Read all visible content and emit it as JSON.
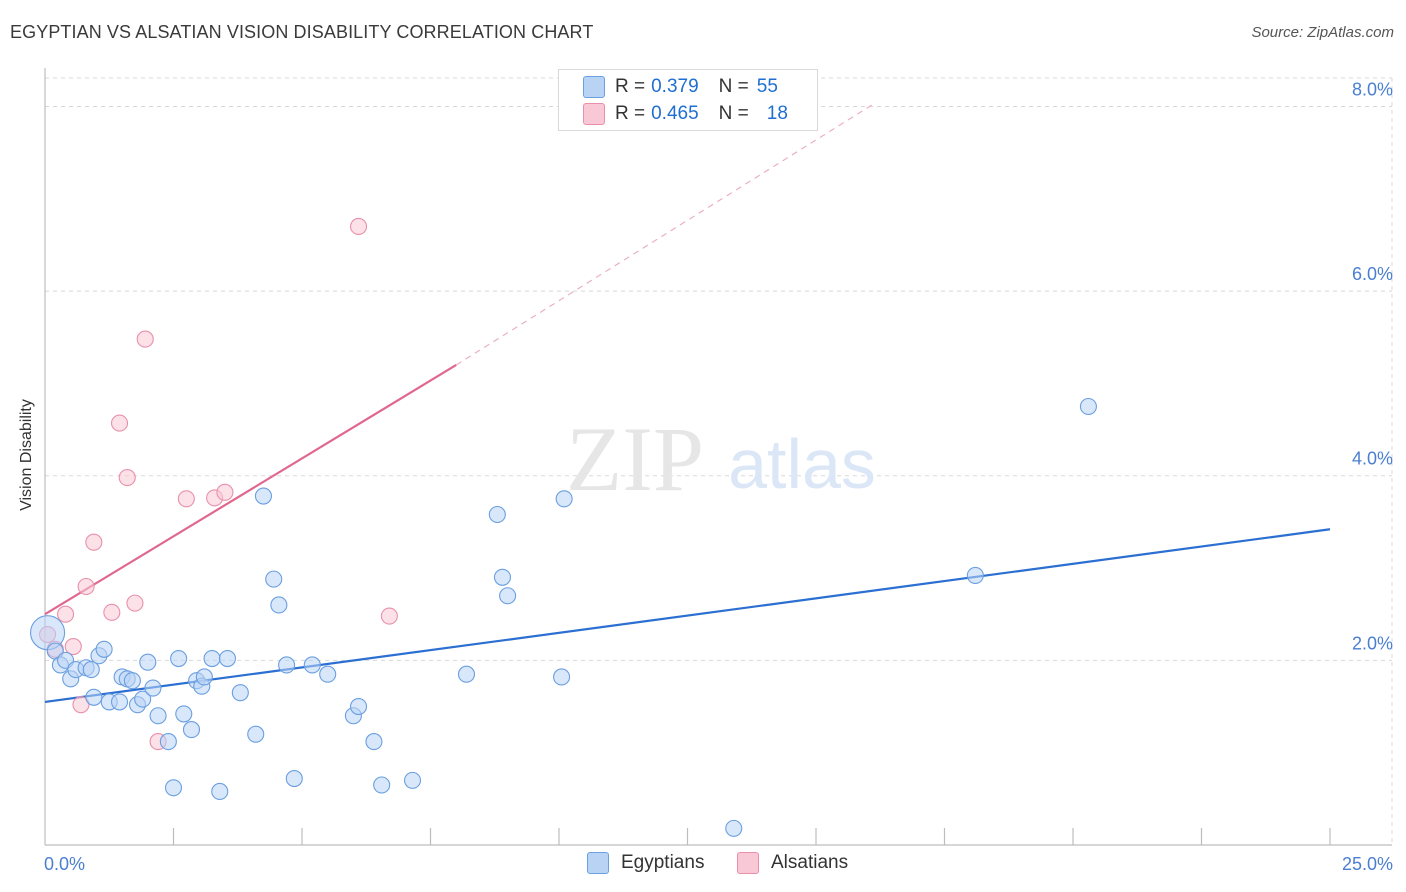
{
  "header": {
    "title": "EGYPTIAN VS ALSATIAN VISION DISABILITY CORRELATION CHART",
    "source": "Source: ZipAtlas.com"
  },
  "legend": {
    "series": [
      {
        "r_label": "R =",
        "r_value": "0.379",
        "n_label": "N =",
        "n_value": "55",
        "fill": "#b9d3f5",
        "stroke": "#6a9fe0"
      },
      {
        "r_label": "R =",
        "r_value": "0.465",
        "n_label": "N =",
        "n_value": "18",
        "fill": "#f9c8d6",
        "stroke": "#e890aa"
      }
    ]
  },
  "bottom_legend": [
    {
      "label": "Egyptians",
      "fill": "#b9d3f5",
      "stroke": "#6a9fe0"
    },
    {
      "label": "Alsatians",
      "fill": "#f9c8d6",
      "stroke": "#e890aa"
    }
  ],
  "watermark": {
    "part1": "ZIP",
    "part2": "atlas"
  },
  "colors": {
    "blue_fill": "#b9d3f5",
    "blue_stroke": "#6a9fe0",
    "blue_line": "#2a6fd1",
    "pink_fill": "#f9c8d6",
    "pink_stroke": "#e890aa",
    "pink_line": "#e06890",
    "tick_text": "#4a7fd0",
    "grid": "#d8d8d8"
  },
  "chart_data": {
    "type": "scatter",
    "title": "EGYPTIAN VS ALSATIAN VISION DISABILITY CORRELATION CHART",
    "xlabel": "",
    "ylabel": "Vision Disability",
    "xlim": [
      0,
      25
    ],
    "ylim": [
      0,
      8.2
    ],
    "x_tick_labels": [
      {
        "value": 0,
        "label": "0.0%"
      },
      {
        "value": 25,
        "label": "25.0%"
      }
    ],
    "x_minor_ticks": [
      2.5,
      5,
      7.5,
      10,
      12.5,
      15,
      17.5,
      20,
      22.5,
      25
    ],
    "y_ticks": [
      {
        "value": 2,
        "label": "2.0%"
      },
      {
        "value": 4,
        "label": "4.0%"
      },
      {
        "value": 6,
        "label": "6.0%"
      },
      {
        "value": 8,
        "label": "8.0%"
      }
    ],
    "grid": true,
    "series": [
      {
        "name": "Egyptians",
        "points": [
          [
            0.05,
            2.3
          ],
          [
            0.2,
            2.1
          ],
          [
            0.3,
            1.95
          ],
          [
            0.4,
            2.0
          ],
          [
            0.5,
            1.8
          ],
          [
            0.6,
            1.9
          ],
          [
            0.8,
            1.92
          ],
          [
            0.9,
            1.9
          ],
          [
            0.95,
            1.6
          ],
          [
            1.05,
            2.05
          ],
          [
            1.15,
            2.12
          ],
          [
            1.25,
            1.55
          ],
          [
            1.45,
            1.55
          ],
          [
            1.5,
            1.82
          ],
          [
            1.6,
            1.8
          ],
          [
            1.7,
            1.78
          ],
          [
            1.8,
            1.52
          ],
          [
            1.9,
            1.58
          ],
          [
            2.0,
            1.98
          ],
          [
            2.1,
            1.7
          ],
          [
            2.2,
            1.4
          ],
          [
            2.4,
            1.12
          ],
          [
            2.5,
            0.62
          ],
          [
            2.6,
            2.02
          ],
          [
            2.7,
            1.42
          ],
          [
            2.85,
            1.25
          ],
          [
            2.95,
            1.78
          ],
          [
            3.05,
            1.72
          ],
          [
            3.1,
            1.82
          ],
          [
            3.25,
            2.02
          ],
          [
            3.4,
            0.58
          ],
          [
            3.55,
            2.02
          ],
          [
            3.8,
            1.65
          ],
          [
            4.1,
            1.2
          ],
          [
            4.25,
            3.78
          ],
          [
            4.45,
            2.88
          ],
          [
            4.55,
            2.6
          ],
          [
            4.7,
            1.95
          ],
          [
            4.85,
            0.72
          ],
          [
            5.2,
            1.95
          ],
          [
            5.5,
            1.85
          ],
          [
            6.0,
            1.4
          ],
          [
            6.1,
            1.5
          ],
          [
            6.4,
            1.12
          ],
          [
            6.55,
            0.65
          ],
          [
            7.15,
            0.7
          ],
          [
            8.2,
            1.85
          ],
          [
            8.8,
            3.58
          ],
          [
            8.9,
            2.9
          ],
          [
            9.0,
            2.7
          ],
          [
            10.1,
            3.75
          ],
          [
            10.05,
            1.82
          ],
          [
            13.4,
            0.18
          ],
          [
            18.1,
            2.92
          ],
          [
            20.3,
            4.75
          ]
        ],
        "trend": {
          "x0": 0,
          "y0": 1.55,
          "x1": 25,
          "y1": 3.42
        }
      },
      {
        "name": "Alsatians",
        "points": [
          [
            0.05,
            2.28
          ],
          [
            0.2,
            2.12
          ],
          [
            0.4,
            2.5
          ],
          [
            0.55,
            2.15
          ],
          [
            0.7,
            1.52
          ],
          [
            0.8,
            2.8
          ],
          [
            0.95,
            3.28
          ],
          [
            1.3,
            2.52
          ],
          [
            1.45,
            4.57
          ],
          [
            1.6,
            3.98
          ],
          [
            1.75,
            2.62
          ],
          [
            1.95,
            5.48
          ],
          [
            2.2,
            1.12
          ],
          [
            2.75,
            3.75
          ],
          [
            3.3,
            3.76
          ],
          [
            3.5,
            3.82
          ],
          [
            6.1,
            6.7
          ],
          [
            6.7,
            2.48
          ]
        ],
        "trend": {
          "x0": 0,
          "y0": 2.5,
          "x1": 8.0,
          "y1": 5.2
        },
        "trend_extension": {
          "x0": 8.0,
          "y0": 5.2,
          "x1": 16.1,
          "y1": 8.02
        }
      }
    ]
  }
}
